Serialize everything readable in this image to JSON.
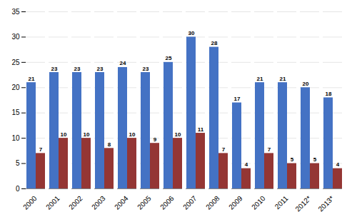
{
  "chart_data": {
    "type": "bar",
    "categories": [
      "2000",
      "2001",
      "2002",
      "2003",
      "2004",
      "2005",
      "2006",
      "2007",
      "2008",
      "2009",
      "2010",
      "2011",
      "2012*",
      "2013*"
    ],
    "series": [
      {
        "color": "#4472C4",
        "values": [
          21,
          23,
          23,
          23,
          24,
          23,
          25,
          30,
          28,
          17,
          21,
          21,
          20,
          18
        ]
      },
      {
        "color": "#943634",
        "values": [
          7,
          10,
          10,
          8,
          10,
          9,
          10,
          11,
          7,
          4,
          7,
          5,
          5,
          4
        ]
      }
    ],
    "ylim": [
      0,
      35
    ],
    "yticks": [
      0,
      5,
      10,
      15,
      20,
      25,
      30,
      35
    ],
    "grid": true,
    "data_labels": true
  }
}
